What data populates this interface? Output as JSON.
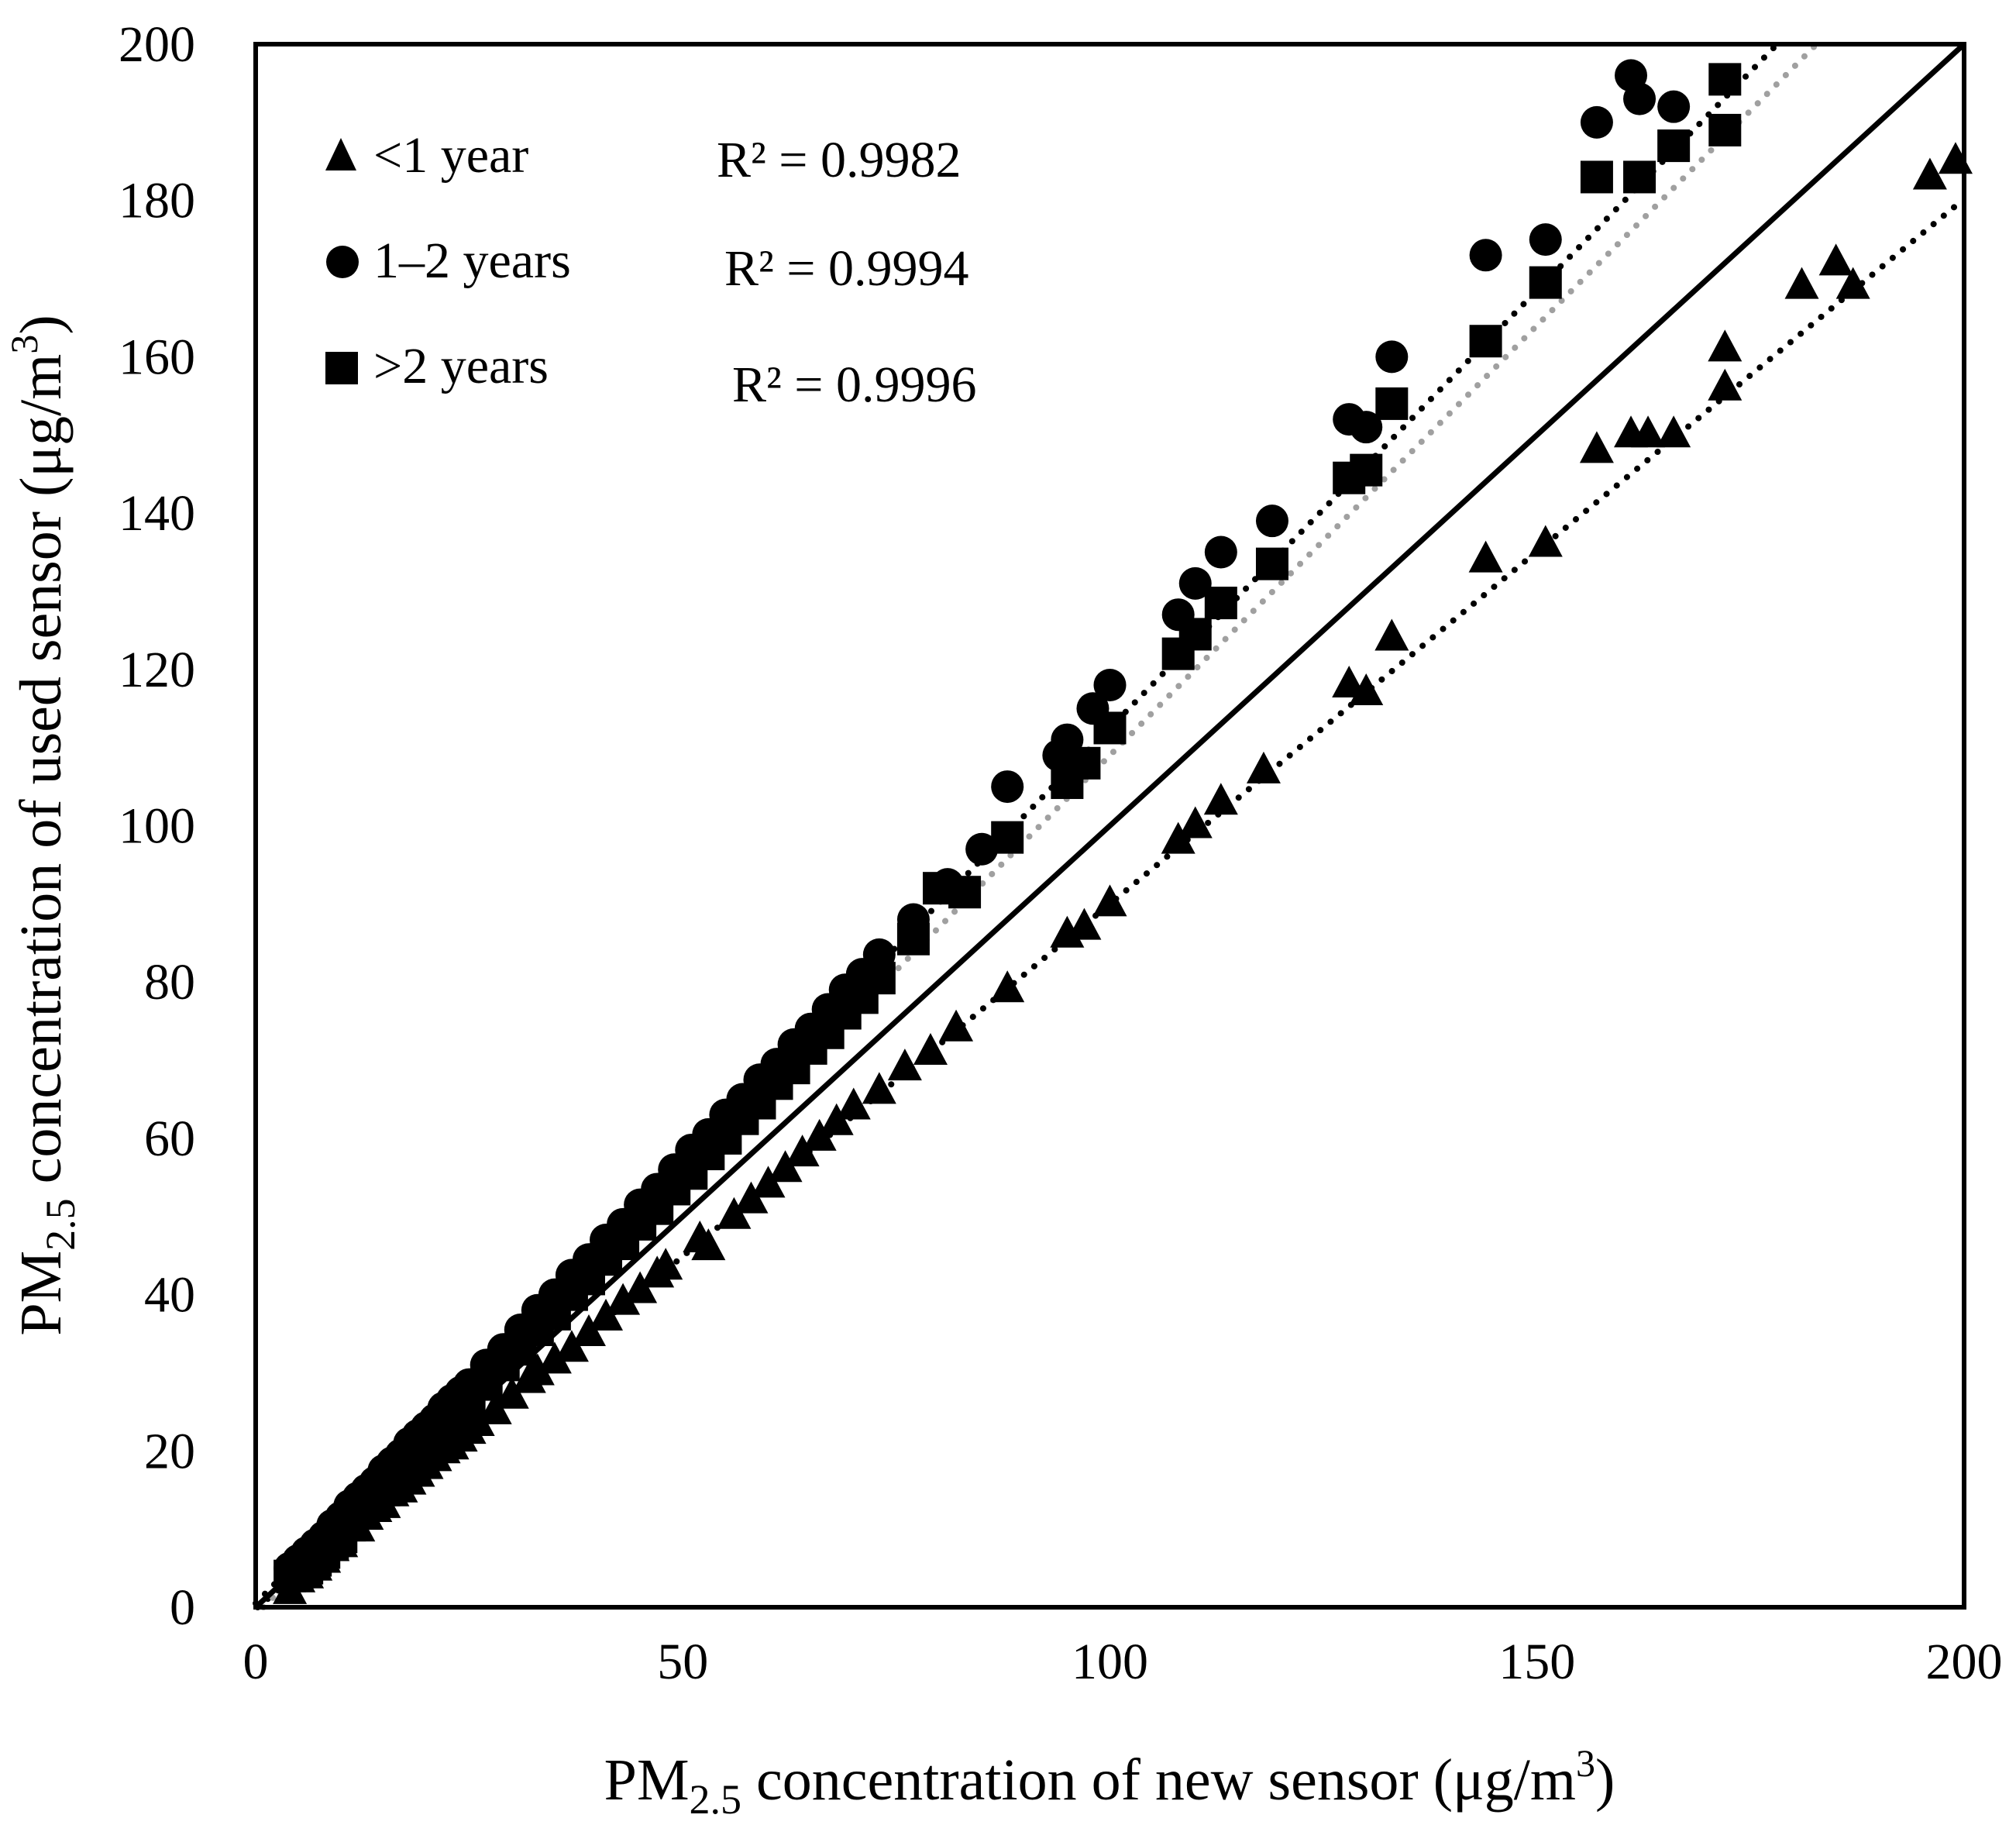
{
  "chart_data": {
    "type": "scatter",
    "xlabel": {
      "prefix": "PM",
      "sub": "2.5",
      "mid": " concentration of new sensor (μg/m",
      "sup": "3",
      "suffix": ")"
    },
    "ylabel": {
      "prefix": "PM",
      "sub": "2.5",
      "mid": " concentration of used sensor (μg/m",
      "sup": "3",
      "suffix": ")"
    },
    "xlim": [
      0,
      200
    ],
    "ylim": [
      0,
      200
    ],
    "x_ticks": [
      0,
      50,
      100,
      150,
      200
    ],
    "y_ticks": [
      0,
      20,
      40,
      60,
      80,
      100,
      120,
      140,
      160,
      180,
      200
    ],
    "identity_line": {
      "from": [
        0,
        0
      ],
      "to": [
        200,
        200
      ],
      "style": "solid",
      "color": "#000000"
    },
    "series": [
      {
        "name": "<1 year",
        "marker": "triangle",
        "color": "#000000",
        "r2_label": "R² = 0.9982",
        "trendline": {
          "slope": 0.902,
          "intercept": -0.2,
          "style": "dotted",
          "color": "#000000"
        },
        "points": [
          [
            4,
            2
          ],
          [
            5,
            3.5
          ],
          [
            6,
            4
          ],
          [
            7,
            5
          ],
          [
            8,
            6
          ],
          [
            9,
            7.5
          ],
          [
            10,
            8
          ],
          [
            12,
            10
          ],
          [
            13,
            11.5
          ],
          [
            14,
            12.5
          ],
          [
            15,
            13
          ],
          [
            16,
            14.5
          ],
          [
            17,
            15
          ],
          [
            18,
            16
          ],
          [
            19,
            17
          ],
          [
            20,
            18
          ],
          [
            21,
            19
          ],
          [
            22,
            20
          ],
          [
            23,
            20.5
          ],
          [
            24,
            21.5
          ],
          [
            25,
            22.5
          ],
          [
            26,
            23.5
          ],
          [
            28,
            25
          ],
          [
            30,
            27
          ],
          [
            32,
            29
          ],
          [
            33,
            30
          ],
          [
            35,
            31.5
          ],
          [
            37,
            33
          ],
          [
            39,
            35
          ],
          [
            41,
            37
          ],
          [
            43,
            39
          ],
          [
            45,
            40.5
          ],
          [
            47,
            42.5
          ],
          [
            48,
            43.5
          ],
          [
            52,
            47
          ],
          [
            53,
            46
          ],
          [
            56,
            50
          ],
          [
            58,
            52
          ],
          [
            60,
            54
          ],
          [
            62,
            56
          ],
          [
            64,
            58
          ],
          [
            66,
            60
          ],
          [
            68,
            62
          ],
          [
            70,
            64
          ],
          [
            73,
            66
          ],
          [
            76,
            69
          ],
          [
            79,
            71
          ],
          [
            82,
            74
          ],
          [
            88,
            79
          ],
          [
            95,
            86
          ],
          [
            97,
            87
          ],
          [
            100,
            90
          ],
          [
            108,
            98
          ],
          [
            110,
            100
          ],
          [
            113,
            103
          ],
          [
            118,
            107
          ],
          [
            128,
            118
          ],
          [
            130,
            117
          ],
          [
            133,
            124
          ],
          [
            144,
            134
          ],
          [
            151,
            136
          ],
          [
            157,
            148
          ],
          [
            161,
            150
          ],
          [
            163,
            150
          ],
          [
            166,
            150
          ],
          [
            172,
            156
          ],
          [
            172,
            161
          ],
          [
            181,
            169
          ],
          [
            185,
            172
          ],
          [
            187,
            169
          ],
          [
            196,
            183
          ],
          [
            199,
            185
          ]
        ]
      },
      {
        "name": "1–2 years",
        "marker": "circle",
        "color": "#000000",
        "r2_label": "R² = 0.9994",
        "trendline": {
          "slope": 1.12,
          "intercept": 0.5,
          "style": "dotted",
          "color": "#000000"
        },
        "points": [
          [
            4,
            5
          ],
          [
            5,
            6
          ],
          [
            6,
            7
          ],
          [
            7,
            8
          ],
          [
            8,
            9
          ],
          [
            9,
            10.5
          ],
          [
            10,
            11.5
          ],
          [
            11,
            13
          ],
          [
            12,
            14
          ],
          [
            13,
            15
          ],
          [
            14,
            16
          ],
          [
            15,
            17.5
          ],
          [
            16,
            18.5
          ],
          [
            17,
            19.5
          ],
          [
            18,
            21
          ],
          [
            19,
            22
          ],
          [
            20,
            23
          ],
          [
            21,
            24
          ],
          [
            22,
            25.5
          ],
          [
            23,
            26.5
          ],
          [
            24,
            27.5
          ],
          [
            25,
            28.5
          ],
          [
            27,
            31
          ],
          [
            29,
            33
          ],
          [
            31,
            35.5
          ],
          [
            33,
            38
          ],
          [
            35,
            40
          ],
          [
            37,
            42.5
          ],
          [
            39,
            44.5
          ],
          [
            41,
            47
          ],
          [
            43,
            49
          ],
          [
            45,
            51.5
          ],
          [
            47,
            53.5
          ],
          [
            49,
            56
          ],
          [
            51,
            58.5
          ],
          [
            53,
            60.5
          ],
          [
            55,
            63
          ],
          [
            57,
            65
          ],
          [
            59,
            67.5
          ],
          [
            61,
            69.5
          ],
          [
            63,
            72
          ],
          [
            65,
            74
          ],
          [
            67,
            76.5
          ],
          [
            69,
            79
          ],
          [
            71,
            81
          ],
          [
            73,
            83.5
          ],
          [
            77,
            88
          ],
          [
            81,
            92.5
          ],
          [
            85,
            97
          ],
          [
            88,
            105
          ],
          [
            94,
            109
          ],
          [
            95,
            111
          ],
          [
            98,
            115
          ],
          [
            100,
            118
          ],
          [
            108,
            127
          ],
          [
            110,
            131
          ],
          [
            113,
            135
          ],
          [
            119,
            139
          ],
          [
            128,
            152
          ],
          [
            130,
            151
          ],
          [
            133,
            160
          ],
          [
            144,
            173
          ],
          [
            151,
            175
          ],
          [
            157,
            190
          ],
          [
            161,
            196
          ],
          [
            162,
            193
          ],
          [
            166,
            192
          ]
        ]
      },
      {
        "name": ">2 years",
        "marker": "square",
        "color": "#000000",
        "r2_label": "R² = 0.9996",
        "trendline": {
          "slope": 1.1,
          "intercept": -1.0,
          "style": "dotted",
          "color": "#a0a0a0"
        },
        "points": [
          [
            4,
            4
          ],
          [
            5,
            4.5
          ],
          [
            6,
            5
          ],
          [
            7,
            6
          ],
          [
            8,
            7
          ],
          [
            9,
            8
          ],
          [
            10,
            9
          ],
          [
            11,
            10.5
          ],
          [
            12,
            12
          ],
          [
            13,
            13
          ],
          [
            14,
            14
          ],
          [
            15,
            15
          ],
          [
            16,
            16.5
          ],
          [
            17,
            17.5
          ],
          [
            18,
            18.5
          ],
          [
            19,
            20
          ],
          [
            20,
            21
          ],
          [
            21,
            22
          ],
          [
            22,
            23
          ],
          [
            23,
            24.5
          ],
          [
            24,
            25.5
          ],
          [
            25,
            26.5
          ],
          [
            27,
            28.5
          ],
          [
            29,
            31
          ],
          [
            31,
            33
          ],
          [
            33,
            35.5
          ],
          [
            35,
            37.5
          ],
          [
            37,
            40
          ],
          [
            39,
            42
          ],
          [
            41,
            44.5
          ],
          [
            43,
            46.5
          ],
          [
            45,
            49
          ],
          [
            47,
            51
          ],
          [
            49,
            53.5
          ],
          [
            51,
            55.5
          ],
          [
            53,
            58
          ],
          [
            55,
            60
          ],
          [
            57,
            62.5
          ],
          [
            59,
            64.5
          ],
          [
            61,
            67
          ],
          [
            63,
            69
          ],
          [
            65,
            71.5
          ],
          [
            67,
            73.5
          ],
          [
            69,
            76
          ],
          [
            71,
            78
          ],
          [
            73,
            80.5
          ],
          [
            77,
            85.5
          ],
          [
            80,
            92
          ],
          [
            83,
            91.5
          ],
          [
            88,
            98.5
          ],
          [
            95,
            105.5
          ],
          [
            97,
            108
          ],
          [
            100,
            112.5
          ],
          [
            108,
            122
          ],
          [
            110,
            124.5
          ],
          [
            113,
            128.5
          ],
          [
            119,
            133.5
          ],
          [
            128,
            144.5
          ],
          [
            130,
            145.5
          ],
          [
            133,
            154
          ],
          [
            144,
            162
          ],
          [
            151,
            169.5
          ],
          [
            157,
            183
          ],
          [
            162,
            183
          ],
          [
            166,
            187
          ],
          [
            172,
            195.5
          ],
          [
            172,
            189
          ]
        ]
      }
    ]
  }
}
